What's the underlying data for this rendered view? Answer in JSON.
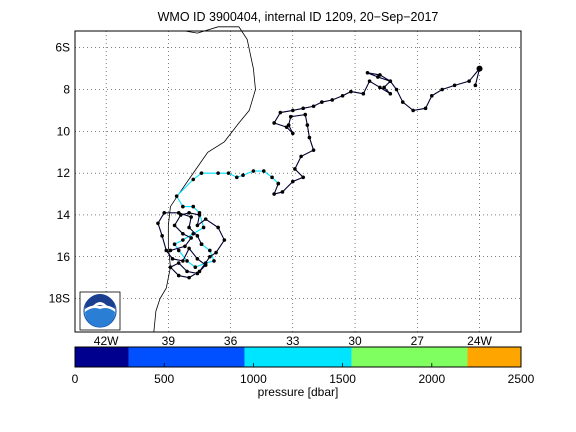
{
  "title": "WMO ID 3900404, internal ID 1209, 20−Sep−2017",
  "map": {
    "lat_ticks": [
      "6S",
      "8",
      "10",
      "12",
      "14",
      "16",
      "18S"
    ],
    "lon_ticks": [
      "42W",
      "39",
      "36",
      "33",
      "30",
      "27",
      "24W"
    ],
    "lon_range": [
      -43.5,
      -22
    ],
    "lat_range": [
      -19.6,
      -5.2
    ],
    "logo": "noaa-logo"
  },
  "colorbar": {
    "label": "pressure [dbar]",
    "ticks": [
      "0",
      "500",
      "1000",
      "1500",
      "2000",
      "2500"
    ],
    "range": [
      0,
      2500
    ],
    "segments": [
      {
        "from": 0,
        "to": 300,
        "color": "#00008f"
      },
      {
        "from": 300,
        "to": 950,
        "color": "#0050ff"
      },
      {
        "from": 950,
        "to": 1550,
        "color": "#00e5ff"
      },
      {
        "from": 1550,
        "to": 2200,
        "color": "#7fff60"
      },
      {
        "from": 2200,
        "to": 2500,
        "color": "#ffa500"
      }
    ]
  },
  "colors": {
    "deep_track": "#000033",
    "shallow_track": "#00e0ff",
    "coast": "#000000"
  },
  "track_deep": [
    [
      -24.2,
      -7.8
    ],
    [
      -24.0,
      -7.0
    ],
    [
      -24.5,
      -7.6
    ],
    [
      -25.2,
      -7.8
    ],
    [
      -25.8,
      -8.0
    ],
    [
      -26.3,
      -8.3
    ],
    [
      -26.6,
      -8.9
    ],
    [
      -27.2,
      -9.0
    ],
    [
      -27.7,
      -8.6
    ],
    [
      -28.0,
      -8.0
    ],
    [
      -28.3,
      -7.6
    ],
    [
      -28.8,
      -7.3
    ],
    [
      -29.4,
      -7.2
    ],
    [
      -28.9,
      -7.4
    ],
    [
      -28.3,
      -7.6
    ],
    [
      -28.6,
      -7.9
    ],
    [
      -28.3,
      -8.2
    ],
    [
      -28.8,
      -7.9
    ],
    [
      -29.3,
      -7.6
    ],
    [
      -29.6,
      -8.2
    ],
    [
      -30.2,
      -8.1
    ],
    [
      -30.6,
      -8.3
    ],
    [
      -31.1,
      -8.5
    ],
    [
      -31.6,
      -8.6
    ],
    [
      -32.0,
      -8.8
    ],
    [
      -32.5,
      -8.9
    ],
    [
      -33.0,
      -9.0
    ],
    [
      -33.6,
      -9.1
    ],
    [
      -33.9,
      -9.6
    ],
    [
      -33.3,
      -9.8
    ],
    [
      -33.0,
      -10.1
    ],
    [
      -33.2,
      -9.7
    ],
    [
      -33.1,
      -9.3
    ],
    [
      -32.4,
      -9.2
    ],
    [
      -32.3,
      -9.7
    ],
    [
      -32.2,
      -10.3
    ],
    [
      -32.0,
      -10.9
    ],
    [
      -32.6,
      -11.2
    ],
    [
      -32.9,
      -11.8
    ],
    [
      -32.5,
      -12.2
    ],
    [
      -33.0,
      -12.4
    ],
    [
      -33.5,
      -12.9
    ],
    [
      -33.9,
      -13.0
    ],
    [
      -33.7,
      -12.5
    ]
  ],
  "track_shallow": [
    [
      -33.7,
      -12.5
    ],
    [
      -34.0,
      -12.2
    ],
    [
      -34.4,
      -11.9
    ],
    [
      -34.9,
      -11.9
    ],
    [
      -35.4,
      -12.1
    ],
    [
      -35.7,
      -12.2
    ],
    [
      -36.1,
      -12.0
    ],
    [
      -36.6,
      -12.0
    ],
    [
      -37.4,
      -12.0
    ],
    [
      -37.8,
      -12.3
    ],
    [
      -38.6,
      -13.1
    ],
    [
      -38.3,
      -13.6
    ],
    [
      -37.8,
      -13.6
    ],
    [
      -37.5,
      -13.9
    ],
    [
      -37.3,
      -14.6
    ],
    [
      -37.8,
      -14.9
    ],
    [
      -38.3,
      -15.2
    ],
    [
      -38.7,
      -15.4
    ],
    [
      -38.5,
      -15.7
    ],
    [
      -38.1,
      -16.2
    ],
    [
      -37.7,
      -16.5
    ],
    [
      -37.2,
      -16.3
    ],
    [
      -36.8,
      -16.2
    ],
    [
      -37.0,
      -15.7
    ],
    [
      -37.4,
      -15.4
    ]
  ],
  "track_deep2": [
    [
      -37.4,
      -15.4
    ],
    [
      -37.6,
      -15.0
    ],
    [
      -38.0,
      -14.6
    ],
    [
      -37.9,
      -14.1
    ],
    [
      -38.5,
      -13.9
    ],
    [
      -39.2,
      -13.9
    ],
    [
      -39.5,
      -14.4
    ],
    [
      -39.3,
      -15.0
    ],
    [
      -39.1,
      -15.7
    ],
    [
      -38.8,
      -16.1
    ],
    [
      -38.3,
      -16.2
    ],
    [
      -38.0,
      -15.6
    ],
    [
      -37.6,
      -16.1
    ],
    [
      -37.2,
      -16.4
    ],
    [
      -37.6,
      -16.8
    ],
    [
      -38.1,
      -16.7
    ],
    [
      -38.5,
      -16.3
    ],
    [
      -38.9,
      -16.5
    ],
    [
      -38.5,
      -16.9
    ],
    [
      -38.0,
      -17.0
    ],
    [
      -37.5,
      -16.7
    ],
    [
      -37.0,
      -16.0
    ],
    [
      -36.7,
      -15.8
    ],
    [
      -36.3,
      -15.2
    ],
    [
      -36.6,
      -14.6
    ],
    [
      -37.2,
      -14.2
    ],
    [
      -37.6,
      -14.5
    ],
    [
      -37.5,
      -14.0
    ],
    [
      -38.0,
      -13.9
    ],
    [
      -38.4,
      -14.0
    ],
    [
      -38.7,
      -14.5
    ],
    [
      -38.3,
      -14.9
    ],
    [
      -37.9,
      -15.1
    ],
    [
      -38.2,
      -15.5
    ],
    [
      -38.9,
      -15.7
    ]
  ],
  "coastline": [
    [
      -38.2,
      -5.2
    ],
    [
      -37.6,
      -5.3
    ],
    [
      -36.6,
      -5.0
    ],
    [
      -35.6,
      -5.0
    ],
    [
      -35.2,
      -5.6
    ],
    [
      -34.9,
      -7.0
    ],
    [
      -34.8,
      -8.0
    ],
    [
      -35.1,
      -9.0
    ],
    [
      -35.6,
      -9.6
    ],
    [
      -36.3,
      -10.5
    ],
    [
      -37.1,
      -11.0
    ],
    [
      -37.8,
      -12.0
    ],
    [
      -38.5,
      -13.0
    ],
    [
      -38.9,
      -13.6
    ],
    [
      -39.0,
      -14.5
    ],
    [
      -39.0,
      -15.5
    ],
    [
      -38.9,
      -16.5
    ],
    [
      -39.1,
      -17.5
    ],
    [
      -39.4,
      -18.0
    ],
    [
      -39.6,
      -18.6
    ],
    [
      -39.7,
      -19.6
    ]
  ]
}
